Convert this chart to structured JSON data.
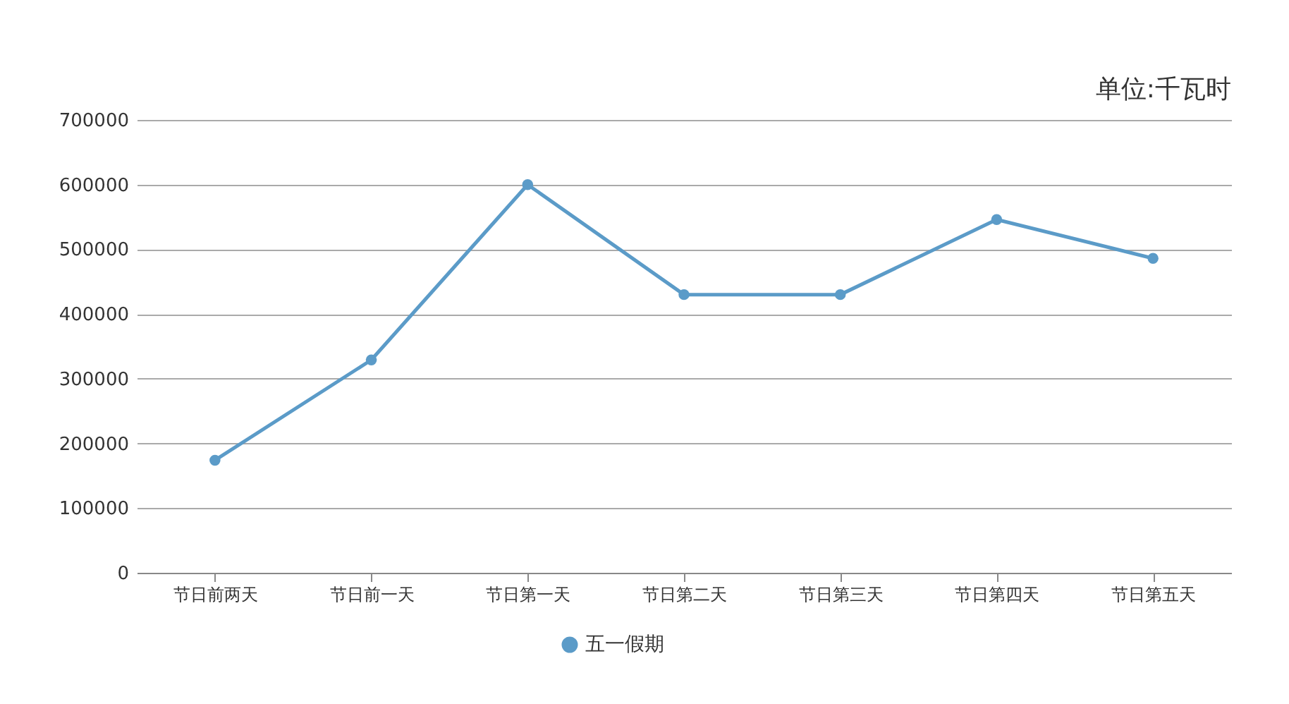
{
  "chart_data": {
    "type": "line",
    "categories": [
      "节日前两天",
      "节日前一天",
      "节日第一天",
      "节日第二天",
      "节日第三天",
      "节日第四天",
      "节日第五天"
    ],
    "series": [
      {
        "name": "五一假期",
        "color": "#5b9bc8",
        "values": [
          174000,
          329000,
          600000,
          430000,
          430000,
          546000,
          486000
        ]
      }
    ],
    "ylim": [
      0,
      700000
    ],
    "yticks": [
      0,
      100000,
      200000,
      300000,
      400000,
      500000,
      600000,
      700000
    ],
    "annotations": [
      "单位:千瓦时"
    ],
    "grid": "y",
    "legend": "bottom",
    "marker": "circle",
    "line_style": "solid"
  }
}
